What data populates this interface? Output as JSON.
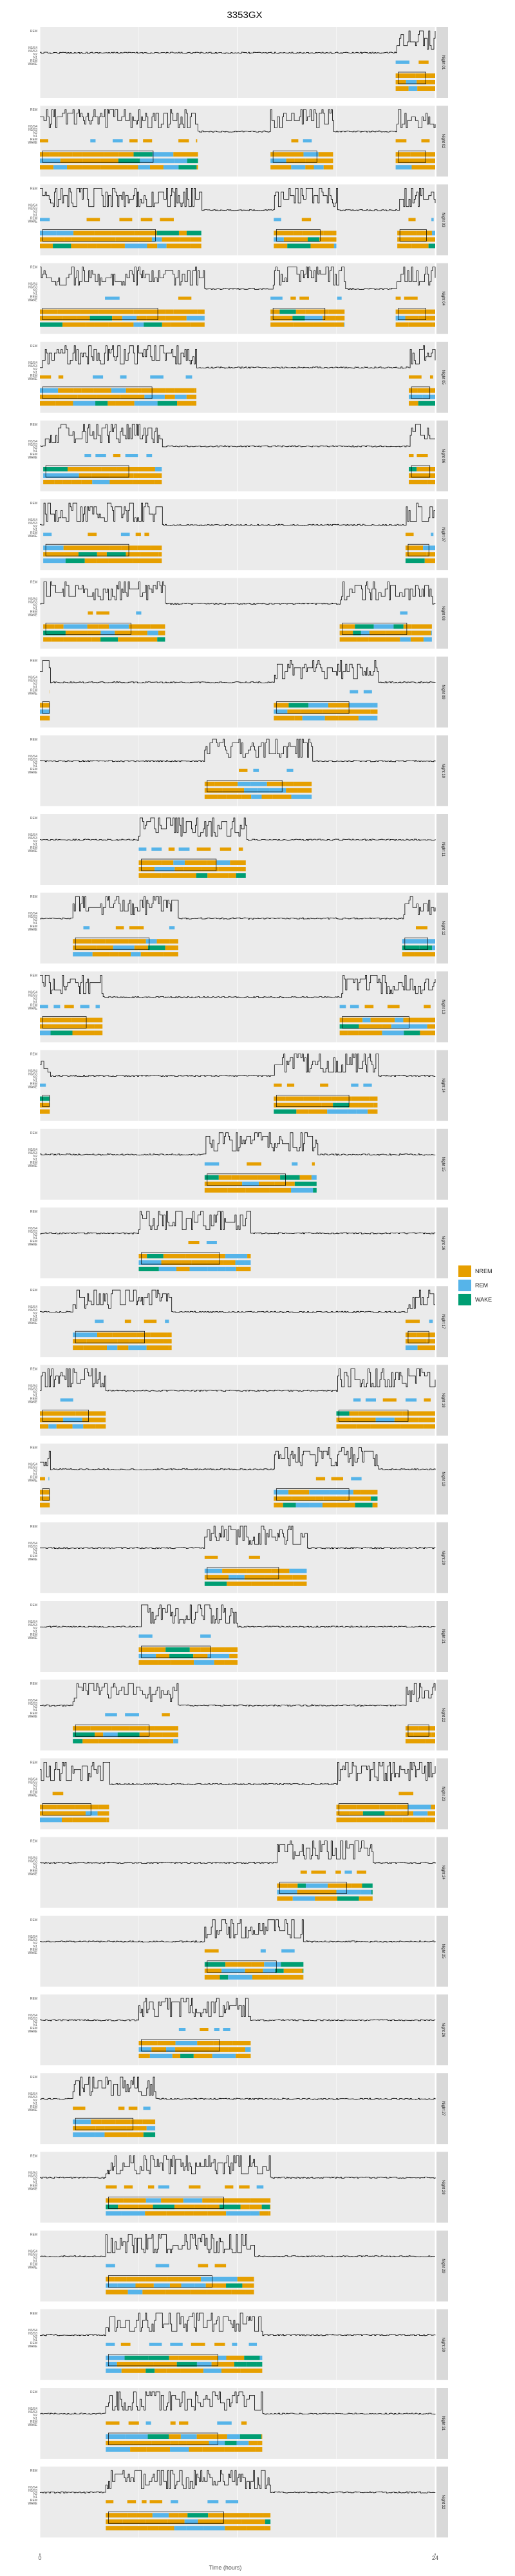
{
  "chart_data": {
    "type": "faceted-hypnogram",
    "title": "3353GX",
    "xlabel": "Time (hours)",
    "xlim": [
      0,
      24
    ],
    "x_ticks": [
      "0",
      "24"
    ],
    "state_labels": [
      "N3/S4",
      "N3/S3",
      "N2",
      "N1",
      "REM",
      "WAKE"
    ],
    "top_label": "REM",
    "legend": {
      "entries": [
        {
          "name": "NREM",
          "color": "#E69F00"
        },
        {
          "name": "REM",
          "color": "#56B4E9"
        },
        {
          "name": "WAKE",
          "color": "#009E73"
        }
      ],
      "position": "right"
    },
    "colors": {
      "nrem": "#E69F00",
      "rem": "#56B4E9",
      "wake": "#009E73",
      "line": "#000000",
      "panel_bg": "#EBEBEB",
      "grid": "#FFFFFF",
      "strip_bg": "#D9D9D9"
    },
    "panels": [
      {
        "label": "Night 01",
        "sleep_start": 21.6,
        "sleep_end": 24.0
      },
      {
        "label": "Night 02",
        "sleep_start": 0.0,
        "sleep_end": 9.6,
        "extra": [
          [
            14.0,
            17.8
          ],
          [
            21.6,
            24.0
          ]
        ]
      },
      {
        "label": "Night 03",
        "sleep_start": 0.0,
        "sleep_end": 9.8,
        "extra": [
          [
            14.2,
            18.0
          ],
          [
            21.7,
            24.0
          ]
        ]
      },
      {
        "label": "Night 04",
        "sleep_start": 0.0,
        "sleep_end": 10.0,
        "extra": [
          [
            14.0,
            18.5
          ],
          [
            21.6,
            24.0
          ]
        ]
      },
      {
        "label": "Night 05",
        "sleep_start": 0.0,
        "sleep_end": 9.5,
        "extra": [
          [
            22.4,
            24.0
          ]
        ]
      },
      {
        "label": "Night 06",
        "sleep_start": 0.2,
        "sleep_end": 7.4,
        "extra": [
          [
            22.4,
            24.0
          ]
        ]
      },
      {
        "label": "Night 07",
        "sleep_start": 0.2,
        "sleep_end": 7.4,
        "extra": [
          [
            22.2,
            24.0
          ]
        ]
      },
      {
        "label": "Night 08",
        "sleep_start": 0.2,
        "sleep_end": 7.6,
        "extra": [
          [
            18.2,
            23.8
          ]
        ]
      },
      {
        "label": "Night 09",
        "sleep_start": 14.2,
        "sleep_end": 20.5,
        "extra": [
          [
            0.0,
            0.6
          ]
        ]
      },
      {
        "label": "Night 10",
        "sleep_start": 10.0,
        "sleep_end": 16.5
      },
      {
        "label": "Night 11",
        "sleep_start": 6.0,
        "sleep_end": 12.5
      },
      {
        "label": "Night 12",
        "sleep_start": 2.0,
        "sleep_end": 8.4,
        "extra": [
          [
            22.0,
            24.0
          ]
        ]
      },
      {
        "label": "Night 13",
        "sleep_start": 0.0,
        "sleep_end": 3.8,
        "extra": [
          [
            18.2,
            24.0
          ]
        ]
      },
      {
        "label": "Night 14",
        "sleep_start": 14.2,
        "sleep_end": 20.5,
        "extra": [
          [
            0.0,
            0.6
          ]
        ]
      },
      {
        "label": "Night 15",
        "sleep_start": 10.0,
        "sleep_end": 16.8
      },
      {
        "label": "Night 16",
        "sleep_start": 6.0,
        "sleep_end": 12.8
      },
      {
        "label": "Night 17",
        "sleep_start": 2.0,
        "sleep_end": 8.0,
        "extra": [
          [
            22.2,
            24.0
          ]
        ]
      },
      {
        "label": "Night 18",
        "sleep_start": 0.0,
        "sleep_end": 4.0,
        "extra": [
          [
            18.0,
            24.0
          ]
        ]
      },
      {
        "label": "Night 19",
        "sleep_start": 14.2,
        "sleep_end": 20.5,
        "extra": [
          [
            0.0,
            0.6
          ]
        ]
      },
      {
        "label": "Night 20",
        "sleep_start": 10.0,
        "sleep_end": 16.2
      },
      {
        "label": "Night 21",
        "sleep_start": 6.0,
        "sleep_end": 12.0
      },
      {
        "label": "Night 22",
        "sleep_start": 2.0,
        "sleep_end": 8.4,
        "extra": [
          [
            22.2,
            24.0
          ]
        ]
      },
      {
        "label": "Night 23",
        "sleep_start": 0.0,
        "sleep_end": 4.2,
        "extra": [
          [
            18.0,
            24.0
          ]
        ]
      },
      {
        "label": "Night 24",
        "sleep_start": 14.4,
        "sleep_end": 20.2
      },
      {
        "label": "Night 25",
        "sleep_start": 10.0,
        "sleep_end": 16.0
      },
      {
        "label": "Night 26",
        "sleep_start": 6.0,
        "sleep_end": 12.8
      },
      {
        "label": "Night 27",
        "sleep_start": 2.0,
        "sleep_end": 7.0
      },
      {
        "label": "Night 28",
        "sleep_start": 4.0,
        "sleep_end": 14.0
      },
      {
        "label": "Night 29",
        "sleep_start": 4.0,
        "sleep_end": 13.0
      },
      {
        "label": "Night 30",
        "sleep_start": 4.0,
        "sleep_end": 13.5
      },
      {
        "label": "Night 31",
        "sleep_start": 4.0,
        "sleep_end": 13.5
      },
      {
        "label": "Night 32",
        "sleep_start": 4.0,
        "sleep_end": 14.0
      }
    ]
  }
}
